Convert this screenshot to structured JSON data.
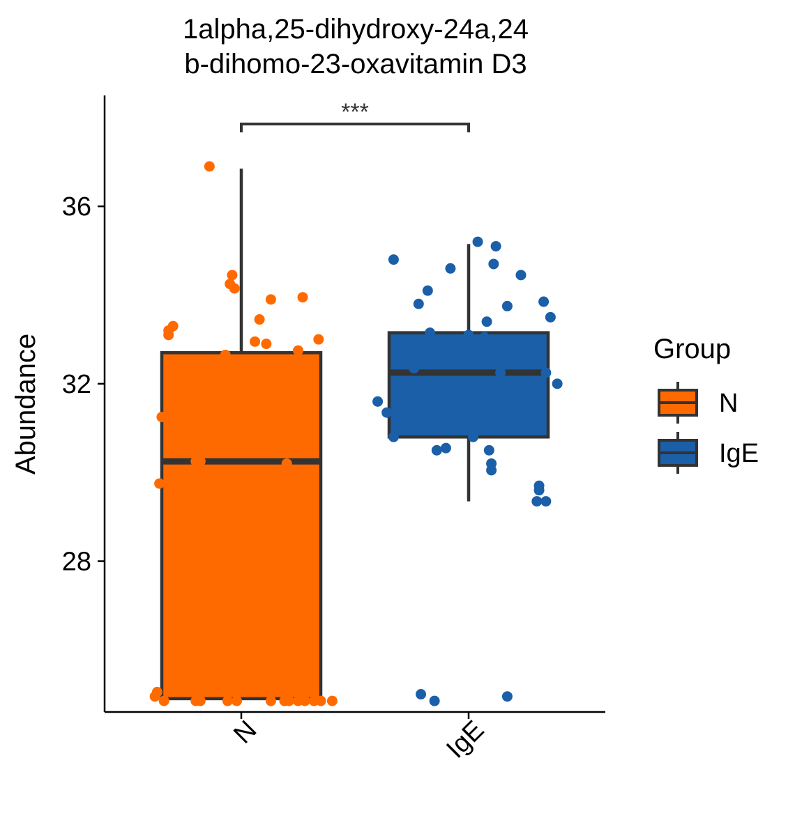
{
  "chart_data": {
    "type": "box",
    "title_lines": [
      "1alpha,25-dihydroxy-24a,24",
      "b-dihomo-23-oxavitamin D3"
    ],
    "xlabel": "",
    "ylabel": "Abundance",
    "ylim": [
      24.6,
      38.5
    ],
    "yticks": [
      28,
      32,
      36
    ],
    "categories": [
      "N",
      "IgE"
    ],
    "legend": {
      "title": "Group",
      "position": "right",
      "entries": [
        "N",
        "IgE"
      ]
    },
    "colors": {
      "N": "#FF6A00",
      "IgE": "#1A5FA8",
      "outline": "#333333"
    },
    "boxes": [
      {
        "name": "N",
        "q1": 24.9,
        "median": 30.25,
        "q3": 32.7,
        "whisker_low": 24.9,
        "whisker_high": 36.85
      },
      {
        "name": "IgE",
        "q1": 30.8,
        "median": 32.25,
        "q3": 33.15,
        "whisker_low": 29.35,
        "whisker_high": 35.15
      }
    ],
    "points": [
      {
        "group": "N",
        "values": [
          36.9,
          34.45,
          34.25,
          34.15,
          33.95,
          33.9,
          33.45,
          33.3,
          33.2,
          33.1,
          33.0,
          32.95,
          32.9,
          32.75,
          32.65,
          31.25,
          30.25,
          30.25,
          30.2,
          29.75,
          25.05,
          24.95,
          24.85,
          24.85,
          24.85,
          24.85,
          24.85,
          24.85,
          24.85,
          24.85,
          24.85,
          24.85,
          24.85,
          24.85,
          24.85
        ],
        "offsets": [
          -0.14,
          -0.04,
          -0.05,
          -0.03,
          0.27,
          0.13,
          0.08,
          -0.3,
          -0.32,
          -0.32,
          0.34,
          0.06,
          0.11,
          0.25,
          -0.07,
          -0.35,
          -0.2,
          -0.18,
          0.2,
          -0.36,
          -0.37,
          -0.38,
          -0.34,
          -0.2,
          -0.18,
          -0.06,
          -0.02,
          0.13,
          0.19,
          0.21,
          0.25,
          0.28,
          0.32,
          0.35,
          0.4
        ]
      },
      {
        "group": "IgE",
        "values": [
          35.2,
          35.1,
          34.8,
          34.7,
          34.6,
          34.45,
          34.1,
          33.85,
          33.8,
          33.75,
          33.5,
          33.4,
          33.15,
          33.1,
          33.05,
          32.35,
          32.25,
          32.25,
          32.0,
          31.6,
          31.35,
          30.8,
          30.8,
          30.55,
          30.5,
          30.5,
          30.2,
          30.05,
          29.7,
          29.6,
          29.35,
          29.35,
          25.0,
          24.95,
          24.85
        ],
        "offsets": [
          0.04,
          0.12,
          -0.33,
          0.11,
          -0.08,
          0.23,
          -0.18,
          0.33,
          -0.22,
          0.17,
          0.36,
          0.08,
          -0.17,
          0.0,
          0.07,
          -0.24,
          0.14,
          0.34,
          0.39,
          -0.4,
          -0.36,
          -0.33,
          0.02,
          -0.1,
          -0.14,
          0.09,
          0.1,
          0.1,
          0.31,
          0.31,
          0.3,
          0.34,
          -0.21,
          0.17,
          -0.15
        ]
      }
    ],
    "annotations": [
      {
        "text": "***",
        "between": [
          "N",
          "IgE"
        ]
      }
    ]
  }
}
